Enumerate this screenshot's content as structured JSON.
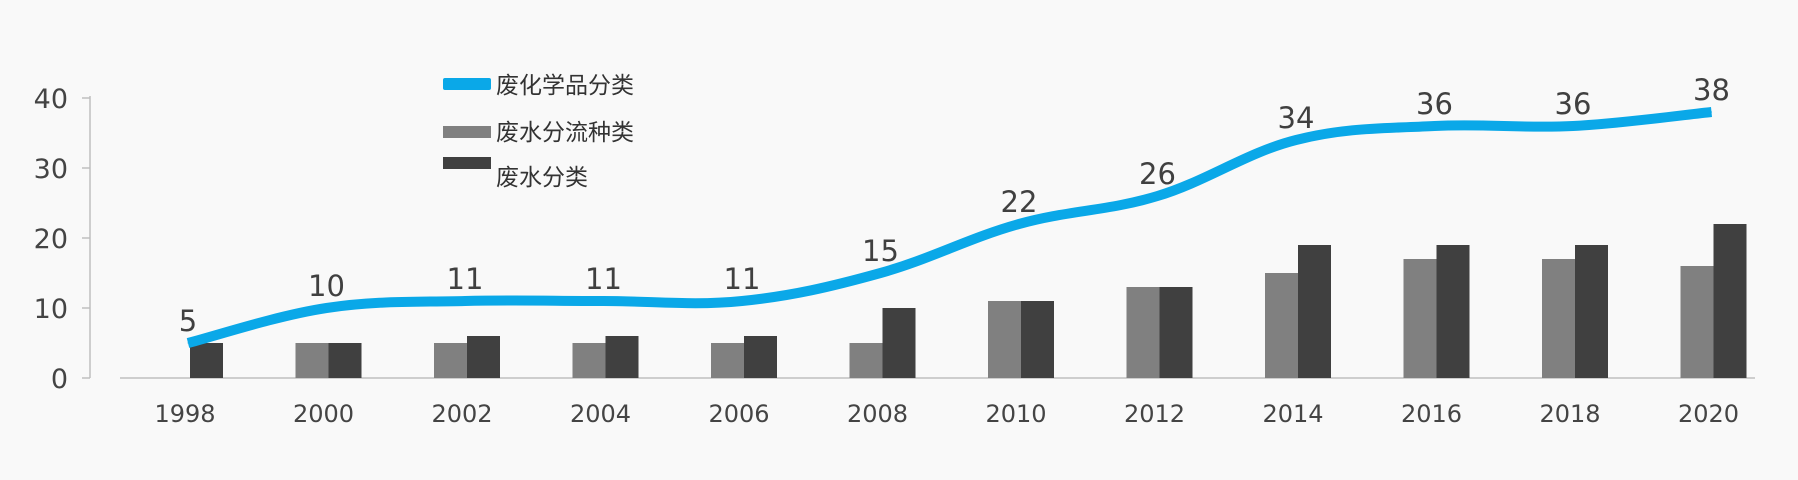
{
  "chart_data": {
    "type": "bar",
    "categories": [
      "1998",
      "2000",
      "2002",
      "2004",
      "2006",
      "2008",
      "2010",
      "2012",
      "2014",
      "2016",
      "2018",
      "2020"
    ],
    "series": [
      {
        "name": "废化学品分类",
        "type": "line",
        "values": [
          5,
          10,
          11,
          11,
          11,
          15,
          22,
          26,
          34,
          36,
          36,
          38
        ]
      },
      {
        "name": "废水分流种类",
        "type": "bar",
        "values": [
          null,
          5,
          5,
          5,
          5,
          5,
          11,
          13,
          15,
          17,
          17,
          16
        ]
      },
      {
        "name": "废水分类",
        "type": "bar",
        "values": [
          5,
          5,
          6,
          6,
          6,
          10,
          11,
          13,
          19,
          19,
          19,
          22
        ]
      }
    ],
    "y_ticks": [
      "0",
      "10",
      "20",
      "30",
      "40"
    ],
    "ylim": [
      0,
      40
    ],
    "line_data_labels": [
      "5",
      "10",
      "11",
      "11",
      "11",
      "15",
      "22",
      "26",
      "34",
      "36",
      "36",
      "38"
    ],
    "legend_position": "top-left",
    "grid": false
  },
  "colors": {
    "line": "#0aa8e8",
    "bar_light": "#808080",
    "bar_dark": "#404040",
    "axis": "#bfbfbf",
    "text": "#404040"
  }
}
